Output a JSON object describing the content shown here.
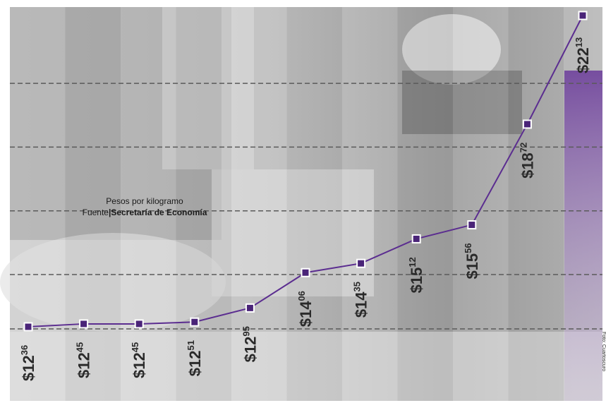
{
  "note": {
    "units": "Pesos por kilogramo",
    "source_prefix": "Fuente",
    "source_separator": "|",
    "source_name": "Secretaría de Economía"
  },
  "photo_credit": "Foto: Cuartoscuro",
  "colors": {
    "line": "#5b2d90",
    "marker_fill": "#4a2478",
    "marker_stroke": "#ffffff",
    "gridline": "#5a5a5a",
    "label": "#2a2a2a",
    "accent_band": "#8a5cb8",
    "photo_dark": "#7d7d7d",
    "photo_light": "#d9d9d9"
  },
  "chart_data": {
    "type": "line",
    "title": "",
    "xlabel": "",
    "ylabel": "",
    "categories": [],
    "values": [
      12.36,
      12.45,
      12.45,
      12.51,
      12.95,
      14.06,
      14.35,
      15.12,
      15.56,
      18.72,
      22.13
    ],
    "labels": [
      {
        "int": "$12",
        "dec": "36"
      },
      {
        "int": "$12",
        "dec": "45"
      },
      {
        "int": "$12",
        "dec": "45"
      },
      {
        "int": "$12",
        "dec": "51"
      },
      {
        "int": "$12",
        "dec": "95"
      },
      {
        "int": "$14",
        "dec": "06"
      },
      {
        "int": "$14",
        "dec": "35"
      },
      {
        "int": "$15",
        "dec": "12"
      },
      {
        "int": "$15",
        "dec": "56"
      },
      {
        "int": "$18",
        "dec": "72"
      },
      {
        "int": "$22",
        "dec": "13"
      }
    ],
    "ylim": [
      12,
      22.5
    ],
    "grid": true,
    "axes_visible": false,
    "legend": "none"
  }
}
